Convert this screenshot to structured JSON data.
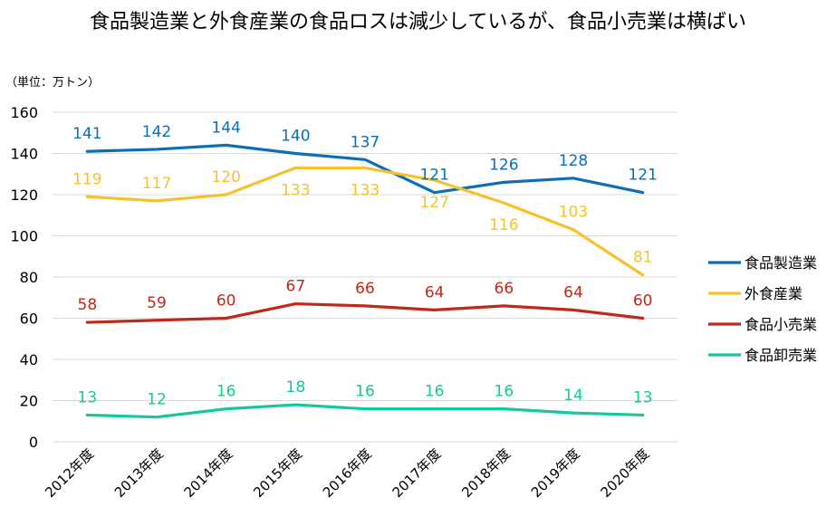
{
  "title": "食品製造業と外食産業の食品ロスは減少しているが、食品小売業は横ばい",
  "unit_label": "（単位：万トン）",
  "chart_data": {
    "type": "line",
    "categories": [
      "2012年度",
      "2013年度",
      "2014年度",
      "2015年度",
      "2016年度",
      "2017年度",
      "2018年度",
      "2019年度",
      "2020年度"
    ],
    "ylim": [
      0,
      160
    ],
    "yticks": [
      0,
      20,
      40,
      60,
      80,
      100,
      120,
      140,
      160
    ],
    "grid": true,
    "legend_position": "right",
    "series": [
      {
        "name": "食品製造業",
        "color": "#0C6EB5",
        "values": [
          141,
          142,
          144,
          140,
          137,
          121,
          126,
          128,
          121
        ],
        "label_pos": [
          "above",
          "above",
          "above",
          "above",
          "above",
          "above",
          "above",
          "above",
          "above"
        ]
      },
      {
        "name": "外食産業",
        "color": "#F5C22E",
        "values": [
          119,
          117,
          120,
          133,
          133,
          127,
          116,
          103,
          81
        ],
        "label_pos": [
          "above",
          "above",
          "above",
          "below",
          "below",
          "below",
          "below",
          "above",
          "above"
        ]
      },
      {
        "name": "食品小売業",
        "color": "#C0281A",
        "values": [
          58,
          59,
          60,
          67,
          66,
          64,
          66,
          64,
          60
        ],
        "label_pos": [
          "above",
          "above",
          "above",
          "above",
          "above",
          "above",
          "above",
          "above",
          "above"
        ]
      },
      {
        "name": "食品卸売業",
        "color": "#12C99B",
        "values": [
          13,
          12,
          16,
          18,
          16,
          16,
          16,
          14,
          13
        ],
        "label_pos": [
          "above",
          "above",
          "above",
          "above",
          "above",
          "above",
          "above",
          "above",
          "above"
        ]
      }
    ]
  }
}
